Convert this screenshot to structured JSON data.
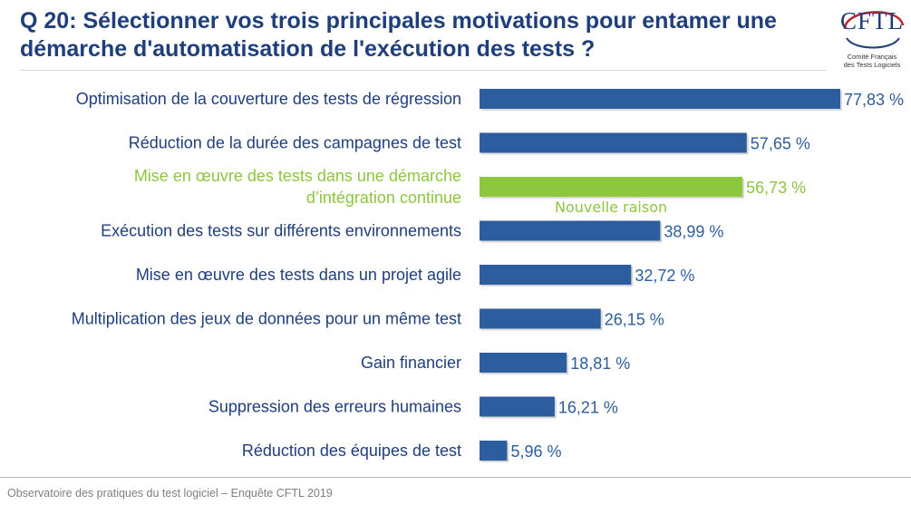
{
  "header": {
    "title": "Q 20: Sélectionner vos trois principales motivations pour entamer une démarche d'automatisation de l'exécution des tests ?"
  },
  "logo": {
    "text": "CFTL",
    "sub_line1": "Comité Français",
    "sub_line2": "des Tests Logiciels"
  },
  "footer": {
    "text": "Observatoire des pratiques du test logiciel – Enquête CFTL 2019"
  },
  "colors": {
    "bar": "#2c5d9e",
    "highlight": "#8dc63f",
    "label": "#1f3e7c",
    "value": "#2c5d9e"
  },
  "chart_data": {
    "type": "bar",
    "orientation": "horizontal",
    "title": "Q 20: Sélectionner vos trois principales motivations pour entamer une démarche d'automatisation de l'exécution des tests ?",
    "categories": [
      [
        "Optimisation de la couverture des tests de régression"
      ],
      [
        "Réduction de la durée des campagnes de test"
      ],
      [
        "Mise en œuvre des tests dans une démarche",
        "d’intégration continue"
      ],
      [
        "Exécution des tests sur différents environnements"
      ],
      [
        "Mise en œuvre des tests dans un projet agile"
      ],
      [
        "Multiplication des jeux de données pour un même test"
      ],
      [
        "Gain financier"
      ],
      [
        "Suppression des erreurs humaines"
      ],
      [
        "Réduction des équipes de test"
      ]
    ],
    "values": [
      77.83,
      57.65,
      56.73,
      38.99,
      32.72,
      26.15,
      18.81,
      16.21,
      5.96
    ],
    "value_labels": [
      "77,83 %",
      "57,65 %",
      "56,73 %",
      "38,99 %",
      "32,72 %",
      "26,15 %",
      "18,81 %",
      "16,21 %",
      "5,96 %"
    ],
    "highlighted_index": 2,
    "annotation": "Nouvelle raison",
    "xlim": [
      0,
      77.83
    ],
    "grid": false,
    "legend": "none"
  }
}
